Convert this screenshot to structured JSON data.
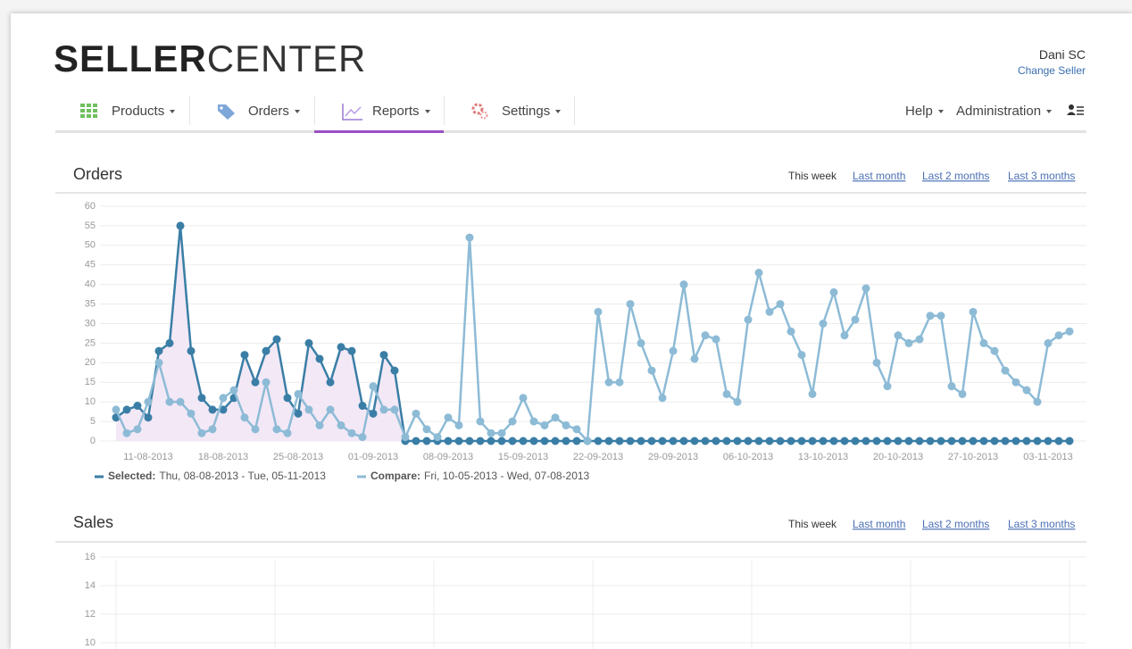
{
  "header": {
    "logo_bold": "SELLER",
    "logo_light": "CENTER",
    "user": "Dani SC",
    "change_seller": "Change Seller"
  },
  "nav": {
    "left": [
      "Products",
      "Orders",
      "Reports",
      "Settings"
    ],
    "right": [
      "Help",
      "Administration"
    ],
    "active": 2
  },
  "chart_data": [
    {
      "type": "line",
      "title": "Orders",
      "ranges": [
        "This week",
        "Last month",
        "Last 2 months",
        "Last 3 months"
      ],
      "categories": [
        null,
        null,
        null,
        "11-08-2013",
        null,
        null,
        null,
        null,
        null,
        null,
        "18-08-2013",
        null,
        null,
        null,
        null,
        null,
        null,
        "25-08-2013",
        null,
        null,
        null,
        null,
        null,
        null,
        "01-09-2013",
        null,
        null,
        null,
        null,
        null,
        null,
        "08-09-2013",
        null,
        null,
        null,
        null,
        null,
        null,
        "15-09-2013",
        null,
        null,
        null,
        null,
        null,
        null,
        "22-09-2013",
        null,
        null,
        null,
        null,
        null,
        null,
        "29-09-2013",
        null,
        null,
        null,
        null,
        null,
        null,
        "06-10-2013",
        null,
        null,
        null,
        null,
        null,
        null,
        "13-10-2013",
        null,
        null,
        null,
        null,
        null,
        null,
        "20-10-2013",
        null,
        null,
        null,
        null,
        null,
        null,
        "27-10-2013",
        null,
        null,
        null,
        null,
        null,
        null,
        "03-11-2013",
        null,
        null
      ],
      "series": [
        {
          "name": "Compare:",
          "period": "Fri, 10-05-2013 - Wed, 07-08-2013",
          "color": "#8dbbd6",
          "values": [
            8,
            2,
            3,
            10,
            20,
            10,
            10,
            7,
            2,
            3,
            11,
            13,
            6,
            3,
            15,
            3,
            2,
            12,
            8,
            4,
            8,
            4,
            2,
            1,
            14,
            8,
            8,
            1,
            7,
            3,
            1,
            6,
            4,
            52,
            5,
            2,
            2,
            5,
            11,
            5,
            4,
            6,
            4,
            3,
            0,
            33,
            15,
            15,
            35,
            25,
            18,
            11,
            23,
            40,
            21,
            27,
            26,
            12,
            10,
            31,
            43,
            33,
            35,
            28,
            22,
            12,
            30,
            38,
            27,
            31,
            39,
            20,
            14,
            27,
            25,
            26,
            32,
            32,
            14,
            12,
            33,
            25,
            23,
            18,
            15,
            13,
            10,
            25,
            27,
            28
          ]
        },
        {
          "name": "Selected:",
          "period": "Thu, 08-08-2013 - Tue, 05-11-2013",
          "color": "#3a7ea6",
          "area_color": "#f2e6f5",
          "values": [
            6,
            8,
            9,
            6,
            23,
            25,
            55,
            23,
            11,
            8,
            8,
            11,
            22,
            15,
            23,
            26,
            11,
            7,
            25,
            21,
            15,
            24,
            23,
            9,
            7,
            22,
            18,
            0,
            0,
            0,
            0,
            0,
            0,
            0,
            0,
            0,
            0,
            0,
            0,
            0,
            0,
            0,
            0,
            0,
            0,
            0,
            0,
            0,
            0,
            0,
            0,
            0,
            0,
            0,
            0,
            0,
            0,
            0,
            0,
            0,
            0,
            0,
            0,
            0,
            0,
            0,
            0,
            0,
            0,
            0,
            0,
            0,
            0,
            0,
            0,
            0,
            0,
            0,
            0,
            0,
            0,
            0,
            0,
            0,
            0,
            0,
            0,
            0,
            0,
            0
          ]
        }
      ],
      "ylim": [
        0,
        60
      ],
      "yticks": [
        0,
        5,
        10,
        15,
        20,
        25,
        30,
        35,
        40,
        45,
        50,
        55,
        60
      ],
      "grid": true
    },
    {
      "type": "line",
      "title": "Sales",
      "ranges": [
        "This week",
        "Last month",
        "Last 2 months",
        "Last 3 months"
      ],
      "ylim": [
        0,
        16
      ],
      "yticks": [
        10,
        12,
        14,
        16
      ],
      "grid": true
    }
  ]
}
